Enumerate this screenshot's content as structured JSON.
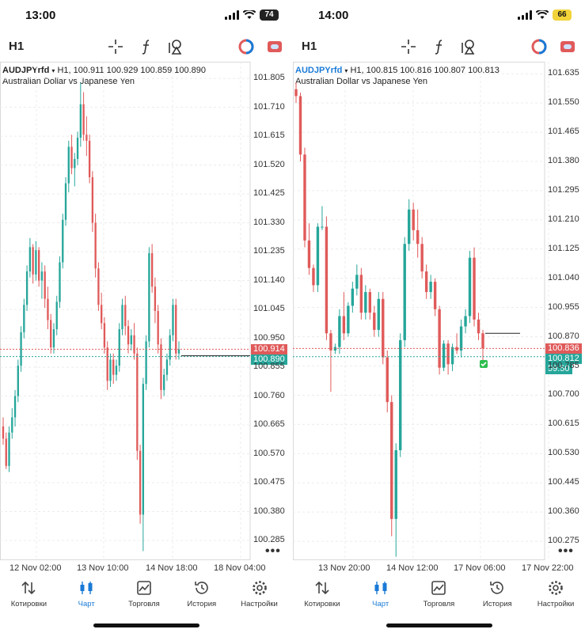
{
  "colors": {
    "up": "#26a69a",
    "down": "#e05a5a",
    "accent": "#1a7ad6",
    "bid_line": "#e05a5a",
    "ask_line": "#26a69a"
  },
  "left": {
    "status": {
      "time": "13:00",
      "battery": "74"
    },
    "toolbar": {
      "timeframe": "H1",
      "icons": [
        "crosshair-icon",
        "function-icon",
        "objects-icon",
        "one-click-trading-icon",
        "chat-icon"
      ]
    },
    "info_line": {
      "symbol": "AUDJPYrfd",
      "ohlc": "H1, 100.911 100.929 100.859 100.890"
    },
    "description": "Australian Dollar vs Japanese Yen",
    "price_labels": [
      "101.805",
      "101.710",
      "101.615",
      "101.520",
      "101.425",
      "101.330",
      "101.235",
      "101.140",
      "101.045",
      "100.950",
      "100.855",
      "100.760",
      "100.665",
      "100.570",
      "100.475",
      "100.380",
      "100.285"
    ],
    "bid": "100.914",
    "ask": "100.890",
    "time_labels": [
      "12 Nov 02:00",
      "13 Nov 10:00",
      "14 Nov 18:00",
      "18 Nov 04:00"
    ]
  },
  "right": {
    "status": {
      "time": "14:00",
      "battery": "66"
    },
    "toolbar": {
      "timeframe": "H1",
      "icons": [
        "crosshair-icon",
        "function-icon",
        "objects-icon",
        "one-click-trading-icon",
        "chat-icon"
      ]
    },
    "info_line": {
      "symbol": "AUDJPYrfd",
      "ohlc": "H1, 100.815 100.816 100.807 100.813"
    },
    "description": "Australian Dollar vs Japanese Yen",
    "price_labels": [
      "101.635",
      "101.550",
      "101.465",
      "101.380",
      "101.295",
      "101.210",
      "101.125",
      "101.040",
      "100.955",
      "100.870",
      "100.785",
      "100.700",
      "100.615",
      "100.530",
      "100.445",
      "100.360",
      "100.275"
    ],
    "bid": "100.836",
    "ask": "100.812",
    "countdown": "59:50",
    "time_labels": [
      "13 Nov 20:00",
      "14 Nov 12:00",
      "17 Nov 06:00",
      "17 Nov 22:00"
    ]
  },
  "tabs": [
    {
      "label": "Котировки",
      "icon": "quotes-icon"
    },
    {
      "label": "Чарт",
      "icon": "chart-icon",
      "active": true
    },
    {
      "label": "Торговля",
      "icon": "trade-icon"
    },
    {
      "label": "История",
      "icon": "history-icon"
    },
    {
      "label": "Настройки",
      "icon": "settings-icon"
    }
  ],
  "chart_data": [
    {
      "type": "candlestick",
      "symbol": "AUDJPYrfd",
      "timeframe": "H1",
      "x_ticks": [
        "12 Nov 02:00",
        "13 Nov 10:00",
        "14 Nov 18:00",
        "18 Nov 04:00"
      ],
      "ylim": [
        100.22,
        101.86
      ],
      "last_bid": 100.914,
      "last_ask": 100.89,
      "candles": [
        [
          100.66,
          100.69,
          100.6,
          100.62
        ],
        [
          100.62,
          100.64,
          100.52,
          100.53
        ],
        [
          100.53,
          100.66,
          100.51,
          100.64
        ],
        [
          100.64,
          100.72,
          100.62,
          100.69
        ],
        [
          100.69,
          100.78,
          100.66,
          100.76
        ],
        [
          100.76,
          100.88,
          100.74,
          100.86
        ],
        [
          100.86,
          100.99,
          100.84,
          100.97
        ],
        [
          100.97,
          101.08,
          100.95,
          101.06
        ],
        [
          101.06,
          101.19,
          101.04,
          101.17
        ],
        [
          101.17,
          101.28,
          101.15,
          101.25
        ],
        [
          101.25,
          101.26,
          101.13,
          101.16
        ],
        [
          101.16,
          101.27,
          101.14,
          101.24
        ],
        [
          101.24,
          101.25,
          101.12,
          101.14
        ],
        [
          101.14,
          101.2,
          101.08,
          101.17
        ],
        [
          101.17,
          101.19,
          101.05,
          101.08
        ],
        [
          101.08,
          101.12,
          100.98,
          101.01
        ],
        [
          101.01,
          101.03,
          100.9,
          100.92
        ],
        [
          100.92,
          101.0,
          100.9,
          100.98
        ],
        [
          100.98,
          101.09,
          100.96,
          101.07
        ],
        [
          101.07,
          101.22,
          101.05,
          101.2
        ],
        [
          101.2,
          101.36,
          101.18,
          101.34
        ],
        [
          101.34,
          101.48,
          101.32,
          101.46
        ],
        [
          101.46,
          101.6,
          101.43,
          101.58
        ],
        [
          101.58,
          101.62,
          101.49,
          101.51
        ],
        [
          101.51,
          101.56,
          101.45,
          101.54
        ],
        [
          101.54,
          101.63,
          101.52,
          101.61
        ],
        [
          101.61,
          101.79,
          101.58,
          101.72
        ],
        [
          101.72,
          101.76,
          101.6,
          101.62
        ],
        [
          101.62,
          101.68,
          101.55,
          101.6
        ],
        [
          101.6,
          101.62,
          101.46,
          101.48
        ],
        [
          101.48,
          101.5,
          101.3,
          101.33
        ],
        [
          101.33,
          101.36,
          101.15,
          101.18
        ],
        [
          101.18,
          101.2,
          101.04,
          101.06
        ],
        [
          101.06,
          101.1,
          100.98,
          101.0
        ],
        [
          101.0,
          101.02,
          100.9,
          100.92
        ],
        [
          100.92,
          100.94,
          100.78,
          100.81
        ],
        [
          100.81,
          100.9,
          100.79,
          100.88
        ],
        [
          100.88,
          100.9,
          100.8,
          100.83
        ],
        [
          100.83,
          100.88,
          100.81,
          100.86
        ],
        [
          100.86,
          101.0,
          100.84,
          100.98
        ],
        [
          100.98,
          101.08,
          100.96,
          101.06
        ],
        [
          101.06,
          101.09,
          100.96,
          100.99
        ],
        [
          100.99,
          101.01,
          100.9,
          100.93
        ],
        [
          100.93,
          100.98,
          100.91,
          100.96
        ],
        [
          100.96,
          101.0,
          100.88,
          100.9
        ],
        [
          100.9,
          100.92,
          100.55,
          100.58
        ],
        [
          100.58,
          100.6,
          100.34,
          100.37
        ],
        [
          100.37,
          100.82,
          100.25,
          100.8
        ],
        [
          100.8,
          100.96,
          100.78,
          100.94
        ],
        [
          100.94,
          101.25,
          100.92,
          101.23
        ],
        [
          101.23,
          101.26,
          101.1,
          101.12
        ],
        [
          101.12,
          101.15,
          101.0,
          101.04
        ],
        [
          101.04,
          101.06,
          100.9,
          100.93
        ],
        [
          100.93,
          100.95,
          100.75,
          100.78
        ],
        [
          100.78,
          100.85,
          100.76,
          100.83
        ],
        [
          100.83,
          100.9,
          100.81,
          100.88
        ],
        [
          100.88,
          100.98,
          100.86,
          100.96
        ],
        [
          100.96,
          101.08,
          100.94,
          101.06
        ],
        [
          101.06,
          101.08,
          100.88,
          100.9
        ],
        [
          100.9,
          100.94,
          100.88,
          100.914
        ]
      ]
    },
    {
      "type": "candlestick",
      "symbol": "AUDJPYrfd",
      "timeframe": "H1",
      "x_ticks": [
        "13 Nov 20:00",
        "14 Nov 12:00",
        "17 Nov 06:00",
        "17 Nov 22:00"
      ],
      "ylim": [
        100.22,
        101.67
      ],
      "last_bid": 100.836,
      "last_ask": 100.812,
      "candles": [
        [
          101.59,
          101.61,
          101.55,
          101.57
        ],
        [
          101.57,
          101.58,
          101.38,
          101.4
        ],
        [
          101.4,
          101.42,
          101.13,
          101.15
        ],
        [
          101.15,
          101.2,
          101.05,
          101.07
        ],
        [
          101.07,
          101.08,
          101.0,
          101.02
        ],
        [
          101.02,
          101.2,
          101.0,
          101.19
        ],
        [
          101.19,
          101.25,
          101.18,
          101.19
        ],
        [
          101.19,
          101.22,
          100.86,
          100.88
        ],
        [
          100.88,
          100.89,
          100.71,
          100.83
        ],
        [
          100.83,
          100.85,
          100.82,
          100.84
        ],
        [
          100.84,
          100.95,
          100.82,
          100.93
        ],
        [
          100.93,
          101.0,
          100.86,
          100.88
        ],
        [
          100.88,
          100.97,
          100.87,
          100.96
        ],
        [
          100.96,
          101.03,
          100.94,
          101.01
        ],
        [
          101.01,
          101.08,
          100.99,
          101.05
        ],
        [
          101.05,
          101.07,
          100.92,
          100.94
        ],
        [
          100.94,
          101.02,
          100.92,
          101.0
        ],
        [
          101.0,
          101.01,
          100.92,
          100.94
        ],
        [
          100.94,
          100.96,
          100.87,
          100.89
        ],
        [
          100.89,
          101.0,
          100.87,
          100.98
        ],
        [
          100.98,
          101.0,
          100.79,
          100.81
        ],
        [
          100.81,
          100.83,
          100.65,
          100.68
        ],
        [
          100.68,
          100.7,
          100.29,
          100.34
        ],
        [
          100.34,
          100.56,
          100.23,
          100.54
        ],
        [
          100.54,
          100.88,
          100.52,
          100.86
        ],
        [
          100.86,
          101.16,
          100.84,
          101.14
        ],
        [
          101.14,
          101.27,
          101.12,
          101.24
        ],
        [
          101.24,
          101.26,
          101.15,
          101.18
        ],
        [
          101.18,
          101.24,
          101.1,
          101.14
        ],
        [
          101.14,
          101.16,
          101.04,
          101.06
        ],
        [
          101.06,
          101.08,
          100.98,
          101.0
        ],
        [
          101.0,
          101.05,
          100.98,
          101.03
        ],
        [
          101.03,
          101.04,
          100.93,
          100.95
        ],
        [
          100.95,
          100.96,
          100.76,
          100.78
        ],
        [
          100.78,
          100.86,
          100.77,
          100.85
        ],
        [
          100.85,
          100.86,
          100.76,
          100.79
        ],
        [
          100.79,
          100.85,
          100.77,
          100.84
        ],
        [
          100.84,
          100.88,
          100.82,
          100.83
        ],
        [
          100.83,
          100.92,
          100.81,
          100.9
        ],
        [
          100.9,
          100.95,
          100.88,
          100.93
        ],
        [
          100.93,
          101.12,
          100.91,
          101.1
        ],
        [
          101.1,
          101.13,
          100.9,
          100.92
        ],
        [
          100.92,
          100.94,
          100.86,
          100.88
        ],
        [
          100.88,
          100.89,
          100.8,
          100.836
        ]
      ]
    }
  ]
}
